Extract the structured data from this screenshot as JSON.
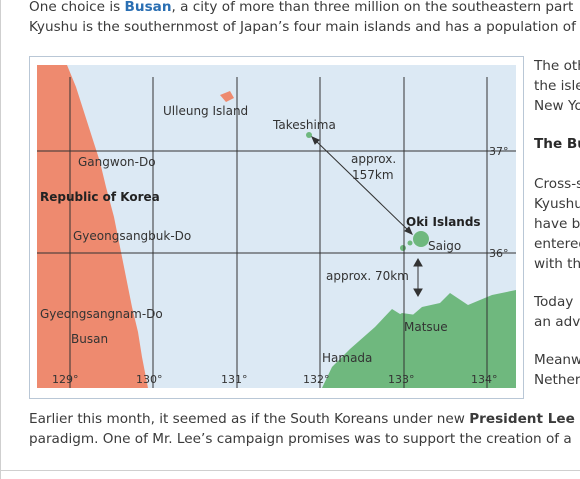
{
  "article": {
    "line1_pre": "One choice is ",
    "line1_link": "Busan",
    "line1_post": ", a city of more than three million on the southeastern part",
    "line2": "Kyushu is the southernmost of Japan’s four main islands and has a population of",
    "side_lines": [
      "The oth",
      "the isle",
      "New Yo"
    ],
    "side_heading": "The Bu",
    "side_lines2": [
      "Cross-s",
      "Kyushu",
      "have b",
      "entered",
      "with th"
    ],
    "side_lines3": [
      "Today",
      "an adv"
    ],
    "side_lines4": [
      "Meanw",
      "Nether"
    ],
    "bottom_line1_pre": "Earlier this month, it seemed as if the South Koreans under new ",
    "bottom_line1_bold": "President Lee",
    "bottom_line2": "paradigm. One of Mr. Lee’s campaign promises was to support the creation of a"
  },
  "map": {
    "labels": {
      "ulleung": "Ulleung Island",
      "takeshima": "Takeshima",
      "gangwon": "Gangwon-Do",
      "korea": "Republic of Korea",
      "gyeongbuk": "Gyeongsangbuk-Do",
      "gyeongnam": "Gyeongsangnam-Do",
      "busan": "Busan",
      "approx157": "approx.",
      "km157": "157km",
      "oki": "Oki Islands",
      "saigo": "Saigo",
      "approx70": "approx. 70km",
      "matsue": "Matsue",
      "hamada": "Hamada"
    },
    "lat_labels": [
      "37°",
      "36°"
    ],
    "lon_labels": [
      "129°",
      "130°",
      "131°",
      "132°",
      "133°",
      "134°"
    ],
    "colors": {
      "sea": "#dce9f4",
      "korea": "#ee8a6f",
      "japan": "#6fb87e",
      "grid": "#333333"
    }
  }
}
